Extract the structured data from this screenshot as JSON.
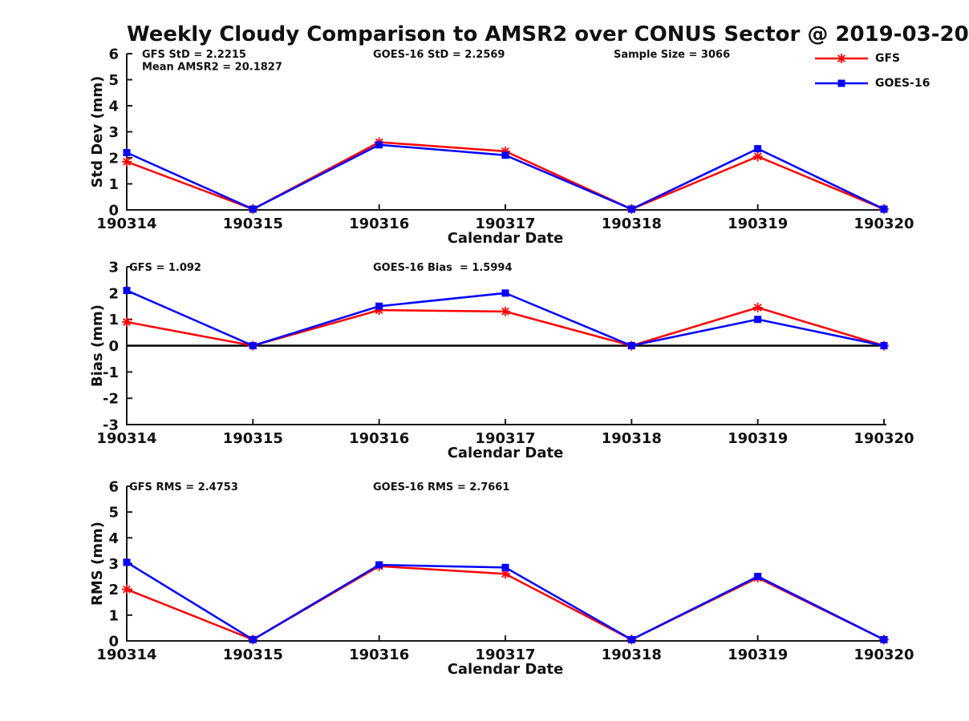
{
  "title": "Weekly Cloudy Comparison to AMSR2 over CONUS Sector @ 2019-03-20",
  "legend": {
    "position": "top-right",
    "items": [
      {
        "label": "GFS",
        "color": "#ff0000",
        "marker": "asterisk"
      },
      {
        "label": "GOES-16",
        "color": "#0000ff",
        "marker": "square"
      }
    ]
  },
  "chart_data": [
    {
      "type": "line",
      "ylabel": "Std Dev (mm)",
      "xlabel": "Calendar Date",
      "ylim": [
        0,
        6
      ],
      "yticks": [
        0,
        1,
        2,
        3,
        4,
        5,
        6
      ],
      "grid": false,
      "categories": [
        "190314",
        "190315",
        "190316",
        "190317",
        "190318",
        "190319",
        "190320"
      ],
      "series": [
        {
          "name": "GFS",
          "color": "#ff0000",
          "marker": "asterisk",
          "values": [
            1.85,
            0.03,
            2.6,
            2.25,
            0.03,
            2.05,
            0.03
          ]
        },
        {
          "name": "GOES-16",
          "color": "#0000ff",
          "marker": "square",
          "values": [
            2.2,
            0.03,
            2.5,
            2.1,
            0.03,
            2.35,
            0.03
          ]
        }
      ],
      "annotations": [
        {
          "text": "GFS StD = 2.2215",
          "dx": 19,
          "row": 0
        },
        {
          "text": "Mean AMSR2 = 20.1827",
          "dx": 19,
          "row": 1
        },
        {
          "text": "GOES-16 StD = 2.2569",
          "dx": 307,
          "row": 0
        },
        {
          "text": "Sample Size = 3066",
          "dx": 607,
          "row": 0
        }
      ],
      "zero_line": false
    },
    {
      "type": "line",
      "ylabel": "Bias (mm)",
      "xlabel": "Calendar Date",
      "ylim": [
        -3,
        3
      ],
      "yticks": [
        3,
        2,
        1,
        0,
        -1,
        -2,
        -3
      ],
      "grid": false,
      "categories": [
        "190314",
        "190315",
        "190316",
        "190317",
        "190318",
        "190319",
        "190320"
      ],
      "series": [
        {
          "name": "GFS",
          "color": "#ff0000",
          "marker": "asterisk",
          "values": [
            0.9,
            0.0,
            1.35,
            1.3,
            0.0,
            1.45,
            0.0
          ]
        },
        {
          "name": "GOES-16",
          "color": "#0000ff",
          "marker": "square",
          "values": [
            2.1,
            0.0,
            1.5,
            2.0,
            0.0,
            1.0,
            0.0
          ]
        }
      ],
      "annotations": [
        {
          "text": "GFS = 1.092",
          "dx": 3,
          "row": 0
        },
        {
          "text": "GOES-16 Bias  = 1.5994",
          "dx": 307,
          "row": 0
        }
      ],
      "zero_line": true
    },
    {
      "type": "line",
      "ylabel": "RMS (mm)",
      "xlabel": "Calendar Date",
      "ylim": [
        0,
        6
      ],
      "yticks": [
        0,
        1,
        2,
        3,
        4,
        5,
        6
      ],
      "grid": false,
      "categories": [
        "190314",
        "190315",
        "190316",
        "190317",
        "190318",
        "190319",
        "190320"
      ],
      "series": [
        {
          "name": "GFS",
          "color": "#ff0000",
          "marker": "asterisk",
          "values": [
            2.0,
            0.05,
            2.9,
            2.6,
            0.05,
            2.45,
            0.05
          ]
        },
        {
          "name": "GOES-16",
          "color": "#0000ff",
          "marker": "square",
          "values": [
            3.05,
            0.05,
            2.95,
            2.85,
            0.05,
            2.5,
            0.05
          ]
        }
      ],
      "annotations": [
        {
          "text": "GFS RMS = 2.4753",
          "dx": 3,
          "row": 0
        },
        {
          "text": "GOES-16 RMS = 2.7661",
          "dx": 307,
          "row": 0
        }
      ],
      "zero_line": false
    }
  ]
}
